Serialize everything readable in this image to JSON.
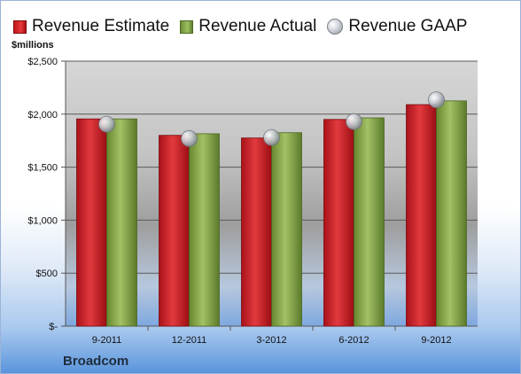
{
  "colors": {
    "estimate": "#d11f24",
    "actual": "#8fb04f",
    "gaap": "#b9bec5"
  },
  "chart_data": {
    "type": "bar",
    "categories": [
      "9-2011",
      "12-2011",
      "3-2012",
      "6-2012",
      "9-2012"
    ],
    "series": [
      {
        "name": "Revenue Estimate",
        "values": [
          1955,
          1800,
          1775,
          1950,
          2090
        ]
      },
      {
        "name": "Revenue Actual",
        "values": [
          1955,
          1815,
          1825,
          1965,
          2125
        ]
      },
      {
        "name": "Revenue GAAP",
        "values": [
          1905,
          1770,
          1780,
          1930,
          2135
        ],
        "marker": "sphere"
      }
    ],
    "ylabel": "$millions",
    "ylim": [
      0,
      2500
    ],
    "yticks": [
      0,
      500,
      1000,
      1500,
      2000,
      2500
    ],
    "ytick_labels": [
      "$-",
      "$500",
      "$1,000",
      "$1,500",
      "$2,000",
      "$2,500"
    ],
    "grid": true,
    "legend": "top",
    "footer": "Broadcom"
  }
}
